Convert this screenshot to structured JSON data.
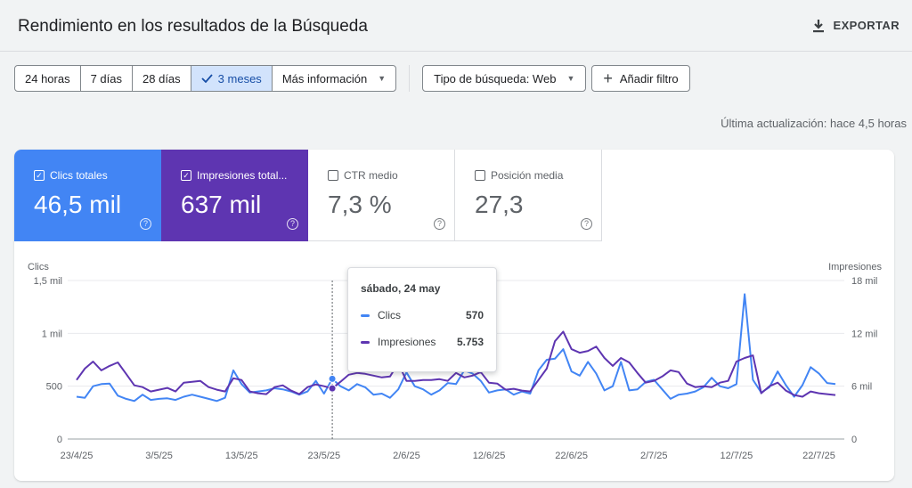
{
  "header": {
    "title": "Rendimiento en los resultados de la Búsqueda",
    "export_label": "EXPORTAR",
    "export_icon": "download-icon"
  },
  "date_range": {
    "options": [
      {
        "label": "24 horas",
        "active": false
      },
      {
        "label": "7 días",
        "active": false
      },
      {
        "label": "28 días",
        "active": false
      },
      {
        "label": "3 meses",
        "active": true
      },
      {
        "label": "Más información",
        "active": false,
        "dropdown": true
      }
    ]
  },
  "filters": {
    "search_type_label": "Tipo de búsqueda: Web",
    "add_filter_label": "Añadir filtro"
  },
  "last_update": "Última actualización: hace 4,5 horas",
  "metrics": [
    {
      "label": "Clics totales",
      "value": "46,5 mil",
      "checked": true,
      "color": "#4285f4"
    },
    {
      "label": "Impresiones total...",
      "value": "637 mil",
      "checked": true,
      "color": "#5e35b1"
    },
    {
      "label": "CTR medio",
      "value": "7,3 %",
      "checked": false
    },
    {
      "label": "Posición media",
      "value": "27,3",
      "checked": false
    }
  ],
  "tooltip": {
    "date": "sábado, 24 may",
    "rows": [
      {
        "name": "Clics",
        "value": "570",
        "color": "#4285f4"
      },
      {
        "name": "Impresiones",
        "value": "5.753",
        "color": "#5e35b1"
      }
    ]
  },
  "chart_data": {
    "type": "line",
    "left_axis_title": "Clics",
    "right_axis_title": "Impresiones",
    "left_ticks": [
      "1,5 mil",
      "1 mil",
      "500",
      "0"
    ],
    "right_ticks": [
      "18 mil",
      "12 mil",
      "6 mil",
      "0"
    ],
    "left_ylim": [
      0,
      1500
    ],
    "right_ylim": [
      0,
      18000
    ],
    "x_labels": [
      "23/4/25",
      "3/5/25",
      "13/5/25",
      "23/5/25",
      "2/6/25",
      "12/6/25",
      "22/6/25",
      "2/7/25",
      "12/7/25",
      "22/7/25"
    ],
    "x_label_index": [
      0,
      10,
      20,
      30,
      40,
      50,
      60,
      70,
      80,
      90
    ],
    "hover_index": 31,
    "series": [
      {
        "name": "Clics",
        "axis": "left",
        "color": "#4285f4",
        "values": [
          400,
          390,
          500,
          520,
          525,
          410,
          380,
          360,
          420,
          370,
          380,
          385,
          370,
          400,
          420,
          400,
          380,
          360,
          390,
          650,
          520,
          440,
          450,
          460,
          480,
          470,
          450,
          420,
          450,
          550,
          430,
          570,
          500,
          460,
          520,
          490,
          420,
          430,
          390,
          470,
          630,
          500,
          470,
          420,
          460,
          530,
          520,
          650,
          620,
          550,
          440,
          460,
          470,
          420,
          450,
          430,
          650,
          750,
          760,
          850,
          640,
          600,
          730,
          620,
          460,
          500,
          730,
          460,
          470,
          540,
          560,
          470,
          380,
          420,
          430,
          450,
          490,
          580,
          500,
          480,
          520,
          1370,
          560,
          440,
          490,
          640,
          510,
          400,
          510,
          680,
          620,
          530,
          520
        ]
      },
      {
        "name": "Impresiones",
        "axis": "right",
        "color": "#5e35b1",
        "values": [
          6700,
          8000,
          8800,
          7800,
          8300,
          8700,
          7400,
          6100,
          5900,
          5400,
          5600,
          5800,
          5400,
          6400,
          6500,
          6600,
          5900,
          5600,
          5400,
          6900,
          6700,
          5400,
          5200,
          5100,
          5900,
          6100,
          5500,
          5100,
          5900,
          6200,
          6000,
          5753,
          6500,
          7300,
          7500,
          7400,
          7200,
          7000,
          7100,
          8600,
          6600,
          6600,
          6700,
          6700,
          6800,
          6600,
          7500,
          7000,
          7200,
          7600,
          6400,
          6300,
          5600,
          5700,
          5500,
          5400,
          6700,
          8000,
          11100,
          12200,
          10200,
          9800,
          10000,
          10500,
          9200,
          8300,
          9200,
          8700,
          7500,
          6400,
          6600,
          7100,
          7800,
          7600,
          6300,
          5900,
          6000,
          5900,
          6400,
          6600,
          8800,
          9200,
          9500,
          5200,
          6000,
          6400,
          5500,
          5000,
          4800,
          5400,
          5200,
          5100,
          5000
        ]
      }
    ]
  }
}
